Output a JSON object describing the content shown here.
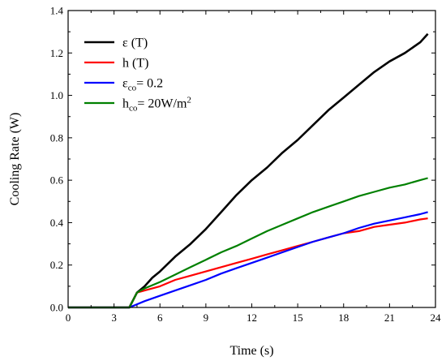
{
  "chart_data": {
    "type": "line",
    "xlabel": "Time (s)",
    "ylabel": "Cooling Rate (W)",
    "xlim": [
      0,
      24
    ],
    "ylim": [
      0,
      1.4
    ],
    "xticks": [
      0,
      3,
      6,
      9,
      12,
      15,
      18,
      21,
      24
    ],
    "yticks": [
      0.0,
      0.2,
      0.4,
      0.6,
      0.8,
      1.0,
      1.2,
      1.4
    ],
    "xtick_labels": [
      "0",
      "3",
      "6",
      "9",
      "12",
      "15",
      "18",
      "21",
      "24"
    ],
    "ytick_labels": [
      "0.0",
      "0.2",
      "0.4",
      "0.6",
      "0.8",
      "1.0",
      "1.2",
      "1.4"
    ],
    "grid": false,
    "legend_position": "top-left",
    "series": [
      {
        "name": "ε (T)",
        "legend_main": "ε",
        "legend_sub": "",
        "legend_rest": " (T)",
        "color": "#000000",
        "x": [
          0,
          4.0,
          4.5,
          5.0,
          5.5,
          6.0,
          7.0,
          8.0,
          9.0,
          10.0,
          11.0,
          12.0,
          13.0,
          14.0,
          15.0,
          16.0,
          17.0,
          18.0,
          19.0,
          20.0,
          21.0,
          22.0,
          23.0,
          23.5
        ],
        "y": [
          0,
          0,
          0.07,
          0.1,
          0.14,
          0.17,
          0.24,
          0.3,
          0.37,
          0.45,
          0.53,
          0.6,
          0.66,
          0.73,
          0.79,
          0.86,
          0.93,
          0.99,
          1.05,
          1.11,
          1.16,
          1.2,
          1.25,
          1.29
        ]
      },
      {
        "name": "h (T)",
        "legend_main": "h",
        "legend_sub": "",
        "legend_rest": " (T)",
        "color": "#ff0000",
        "x": [
          0,
          4.0,
          4.5,
          5.0,
          6.0,
          7.0,
          8.0,
          9.0,
          10.0,
          11.0,
          12.0,
          13.0,
          14.0,
          15.0,
          16.0,
          17.0,
          18.0,
          19.0,
          20.0,
          21.0,
          22.0,
          23.0,
          23.5
        ],
        "y": [
          0,
          0,
          0.07,
          0.08,
          0.1,
          0.13,
          0.15,
          0.17,
          0.19,
          0.21,
          0.23,
          0.25,
          0.27,
          0.29,
          0.31,
          0.33,
          0.35,
          0.36,
          0.38,
          0.39,
          0.4,
          0.415,
          0.42
        ]
      },
      {
        "name": "εco= 0.2",
        "legend_main": "ε",
        "legend_sub": "co",
        "legend_rest": "= 0.2",
        "color": "#0000ff",
        "x": [
          0,
          4.0,
          5.0,
          6.0,
          7.0,
          8.0,
          9.0,
          10.0,
          11.0,
          12.0,
          13.0,
          14.0,
          15.0,
          16.0,
          17.0,
          18.0,
          19.0,
          20.0,
          21.0,
          22.0,
          23.0,
          23.5
        ],
        "y": [
          0,
          0,
          0.03,
          0.055,
          0.08,
          0.105,
          0.13,
          0.16,
          0.185,
          0.21,
          0.235,
          0.26,
          0.285,
          0.31,
          0.33,
          0.35,
          0.375,
          0.395,
          0.41,
          0.425,
          0.44,
          0.45
        ]
      },
      {
        "name": "hco= 20W/m2",
        "legend_main": "h",
        "legend_sub": "co",
        "legend_rest": "= 20W/m",
        "legend_sup": "2",
        "color": "#008000",
        "x": [
          0,
          4.0,
          4.5,
          5.0,
          6.0,
          7.0,
          8.0,
          9.0,
          10.0,
          11.0,
          12.0,
          13.0,
          14.0,
          15.0,
          16.0,
          17.0,
          18.0,
          19.0,
          20.0,
          21.0,
          22.0,
          23.0,
          23.5
        ],
        "y": [
          0,
          0,
          0.07,
          0.09,
          0.12,
          0.155,
          0.19,
          0.225,
          0.26,
          0.29,
          0.325,
          0.36,
          0.39,
          0.42,
          0.45,
          0.475,
          0.5,
          0.525,
          0.545,
          0.565,
          0.58,
          0.6,
          0.61
        ]
      }
    ]
  }
}
